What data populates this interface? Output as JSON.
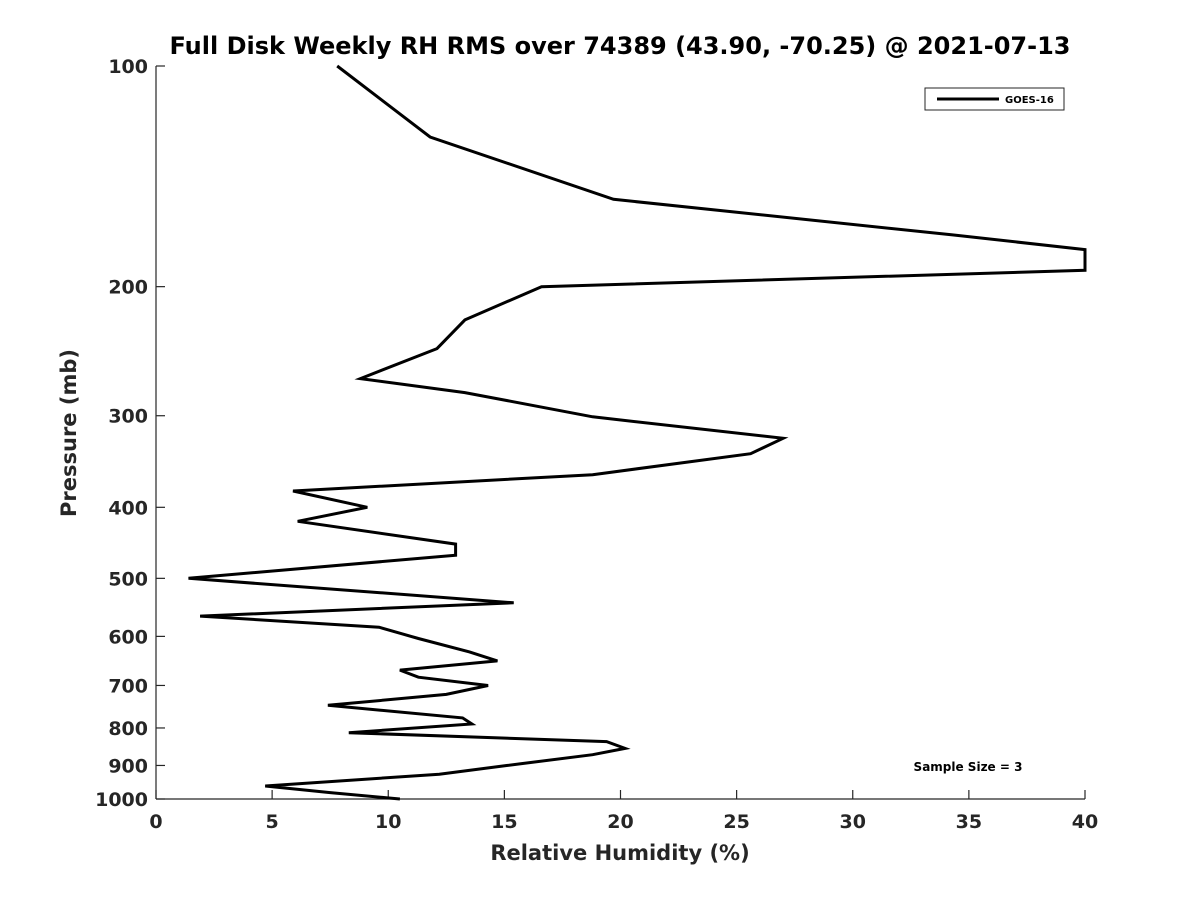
{
  "chart_data": {
    "type": "line",
    "title": "Full Disk Weekly RH RMS over 74389 (43.90, -70.25) @ 2021-07-13",
    "xlabel": "Relative Humidity (%)",
    "ylabel": "Pressure (mb)",
    "xlim": [
      0,
      40
    ],
    "ylim": [
      100,
      1000
    ],
    "y_scale": "log",
    "y_reversed": true,
    "x_ticks": [
      0,
      5,
      10,
      15,
      20,
      25,
      30,
      35,
      40
    ],
    "y_ticks": [
      100,
      200,
      300,
      400,
      500,
      600,
      700,
      800,
      900,
      1000
    ],
    "grid": false,
    "legend_position": "top-right",
    "annotation": "Sample Size = 3",
    "series": [
      {
        "name": "GOES-16",
        "color": "#000000",
        "points": [
          [
            7.8,
            100
          ],
          [
            11.8,
            125
          ],
          [
            19.7,
            152
          ],
          [
            34.3,
            170
          ],
          [
            40.0,
            178
          ],
          [
            40.0,
            190
          ],
          [
            16.6,
            200
          ],
          [
            13.3,
            222
          ],
          [
            12.1,
            243
          ],
          [
            8.8,
            267
          ],
          [
            13.3,
            279
          ],
          [
            18.8,
            301
          ],
          [
            27.0,
            322
          ],
          [
            25.6,
            338
          ],
          [
            18.8,
            361
          ],
          [
            5.9,
            380
          ],
          [
            9.1,
            400
          ],
          [
            6.1,
            418
          ],
          [
            12.9,
            449
          ],
          [
            12.9,
            465
          ],
          [
            1.4,
            500
          ],
          [
            15.4,
            540
          ],
          [
            1.9,
            563
          ],
          [
            9.6,
            583
          ],
          [
            11.3,
            604
          ],
          [
            13.5,
            630
          ],
          [
            14.7,
            648
          ],
          [
            10.5,
            667
          ],
          [
            11.3,
            682
          ],
          [
            14.3,
            700
          ],
          [
            12.5,
            720
          ],
          [
            7.4,
            745
          ],
          [
            13.2,
            775
          ],
          [
            13.6,
            790
          ],
          [
            8.3,
            812
          ],
          [
            19.4,
            835
          ],
          [
            20.2,
            853
          ],
          [
            18.8,
            870
          ],
          [
            15.1,
            900
          ],
          [
            12.2,
            925
          ],
          [
            4.7,
            960
          ],
          [
            7.5,
            980
          ],
          [
            10.5,
            1000
          ]
        ]
      }
    ]
  }
}
